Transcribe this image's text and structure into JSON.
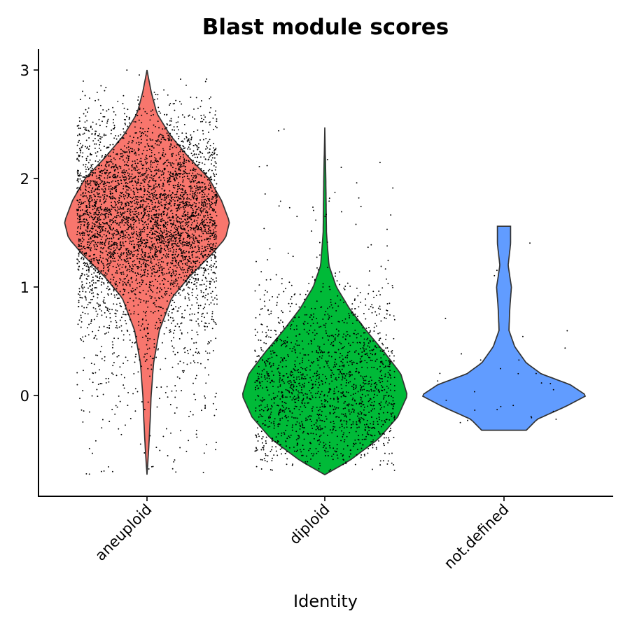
{
  "chart_data": {
    "type": "violin",
    "title": "Blast module scores",
    "xlabel": "Identity",
    "ylabel": "",
    "ylim": [
      -0.95,
      3.2
    ],
    "yticks": [
      0,
      1,
      2,
      3
    ],
    "categories": [
      "aneuploid",
      "diploid",
      "not.defined"
    ],
    "colors": [
      "#F8766D",
      "#00BA38",
      "#619CFF"
    ],
    "jitter_points": true,
    "groups": [
      {
        "name": "aneuploid",
        "color": "#F8766D",
        "min": -0.73,
        "max": 3.0,
        "approx_n_points": 4500,
        "density_profile": [
          [
            -0.73,
            0.0
          ],
          [
            -0.5,
            0.02
          ],
          [
            -0.2,
            0.04
          ],
          [
            0.0,
            0.05
          ],
          [
            0.3,
            0.08
          ],
          [
            0.6,
            0.15
          ],
          [
            0.9,
            0.3
          ],
          [
            1.1,
            0.52
          ],
          [
            1.3,
            0.78
          ],
          [
            1.45,
            0.95
          ],
          [
            1.6,
            1.0
          ],
          [
            1.8,
            0.9
          ],
          [
            2.0,
            0.75
          ],
          [
            2.2,
            0.5
          ],
          [
            2.4,
            0.28
          ],
          [
            2.6,
            0.12
          ],
          [
            2.8,
            0.05
          ],
          [
            3.0,
            0.0
          ]
        ]
      },
      {
        "name": "diploid",
        "color": "#00BA38",
        "min": -0.73,
        "max": 2.47,
        "approx_n_points": 1700,
        "density_profile": [
          [
            -0.73,
            0.0
          ],
          [
            -0.6,
            0.3
          ],
          [
            -0.4,
            0.65
          ],
          [
            -0.2,
            0.88
          ],
          [
            0.0,
            1.0
          ],
          [
            0.2,
            0.92
          ],
          [
            0.4,
            0.72
          ],
          [
            0.6,
            0.5
          ],
          [
            0.8,
            0.3
          ],
          [
            1.0,
            0.14
          ],
          [
            1.2,
            0.05
          ],
          [
            1.5,
            0.02
          ],
          [
            2.0,
            0.012
          ],
          [
            2.47,
            0.0
          ]
        ]
      },
      {
        "name": "not.defined",
        "color": "#619CFF",
        "min": -0.32,
        "max": 1.56,
        "approx_n_points": 30,
        "density_profile": [
          [
            -0.32,
            0.27
          ],
          [
            -0.22,
            0.4
          ],
          [
            -0.1,
            0.75
          ],
          [
            0.0,
            1.0
          ],
          [
            0.1,
            0.8
          ],
          [
            0.2,
            0.45
          ],
          [
            0.3,
            0.27
          ],
          [
            0.45,
            0.13
          ],
          [
            0.6,
            0.06
          ],
          [
            0.8,
            0.07
          ],
          [
            1.0,
            0.09
          ],
          [
            1.2,
            0.05
          ],
          [
            1.4,
            0.08
          ],
          [
            1.56,
            0.08
          ]
        ]
      }
    ]
  }
}
